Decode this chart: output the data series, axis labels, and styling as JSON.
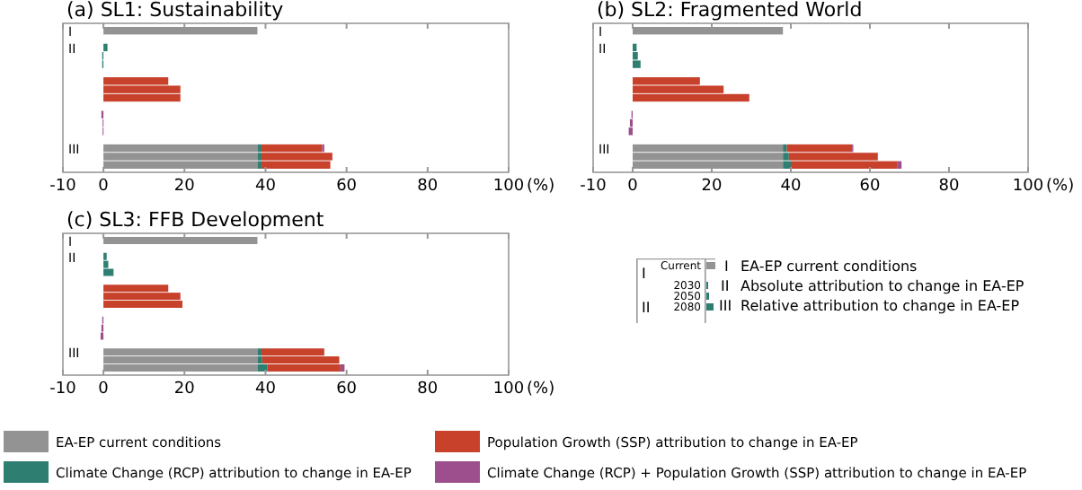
{
  "chart_data": [
    {
      "type": "bar",
      "orientation": "horizontal",
      "stacked": true,
      "title": "(a) SL1: Sustainability",
      "legend": "bottom",
      "xlabel": "(%)",
      "categories": [
        "I",
        null,
        "II",
        null,
        null,
        null,
        null,
        null,
        null,
        null,
        null,
        null,
        null,
        null,
        "III",
        null,
        null
      ],
      "xlim": [
        -10,
        100
      ],
      "xticks": [
        -10,
        0,
        20,
        40,
        60,
        80,
        100
      ],
      "series": [
        {
          "name": "EA-EP current conditions",
          "color": "#939393",
          "values": [
            38,
            null,
            null,
            null,
            null,
            null,
            null,
            null,
            null,
            null,
            null,
            null,
            null,
            null,
            38,
            38,
            38
          ]
        },
        {
          "name": "Climate Change (RCP) attribution to change in EA-EP",
          "color": "#2e7f72",
          "values": [
            null,
            null,
            1,
            -0.3,
            -0.3,
            null,
            null,
            null,
            null,
            null,
            null,
            null,
            null,
            null,
            1,
            1,
            1
          ]
        },
        {
          "name": "Population Growth (SSP) attribution to change in EA-EP",
          "color": "#c8412b",
          "values": [
            null,
            null,
            null,
            null,
            null,
            null,
            16,
            19,
            19,
            null,
            null,
            null,
            null,
            null,
            15,
            17.5,
            17
          ]
        },
        {
          "name": "Climate Change (RCP) + Population Growth (SSP) attribution to change in EA-EP",
          "color": "#9c4f8c",
          "values": [
            null,
            null,
            null,
            null,
            null,
            null,
            null,
            null,
            null,
            null,
            -0.5,
            -0.2,
            -0.2,
            null,
            0.5,
            null,
            null
          ]
        }
      ]
    },
    {
      "type": "bar",
      "orientation": "horizontal",
      "stacked": true,
      "title": "(b) SL2: Fragmented World",
      "xlabel": "(%)",
      "categories": [
        "I",
        null,
        "II",
        null,
        null,
        null,
        null,
        null,
        null,
        null,
        null,
        null,
        null,
        null,
        "III",
        null,
        null
      ],
      "xlim": [
        -10,
        100
      ],
      "xticks": [
        -10,
        0,
        20,
        40,
        60,
        80,
        100
      ],
      "series": [
        {
          "color": "#939393",
          "values": [
            38,
            null,
            null,
            null,
            null,
            null,
            null,
            null,
            null,
            null,
            null,
            null,
            null,
            null,
            38,
            38,
            38
          ]
        },
        {
          "color": "#2e7f72",
          "values": [
            null,
            null,
            1,
            1.3,
            2,
            null,
            null,
            null,
            null,
            null,
            null,
            null,
            null,
            null,
            1,
            1.5,
            2
          ]
        },
        {
          "color": "#c8412b",
          "values": [
            null,
            null,
            null,
            null,
            null,
            null,
            17,
            23,
            29.5,
            null,
            null,
            null,
            null,
            null,
            16.5,
            22.5,
            27
          ]
        },
        {
          "color": "#9c4f8c",
          "values": [
            null,
            null,
            null,
            null,
            null,
            null,
            null,
            null,
            null,
            null,
            -0.3,
            -0.7,
            -1,
            null,
            0.3,
            null,
            1
          ]
        }
      ]
    },
    {
      "type": "bar",
      "orientation": "horizontal",
      "stacked": true,
      "title": "(c) SL3: FFB Development",
      "xlabel": "(%)",
      "categories": [
        "I",
        null,
        "II",
        null,
        null,
        null,
        null,
        null,
        null,
        null,
        null,
        null,
        null,
        null,
        "III",
        null,
        null
      ],
      "xlim": [
        -10,
        100
      ],
      "xticks": [
        -10,
        0,
        20,
        40,
        60,
        80,
        100
      ],
      "series": [
        {
          "color": "#939393",
          "values": [
            38,
            null,
            null,
            null,
            null,
            null,
            null,
            null,
            null,
            null,
            null,
            null,
            null,
            null,
            38,
            38,
            38
          ]
        },
        {
          "color": "#2e7f72",
          "values": [
            null,
            null,
            0.8,
            1.2,
            2.5,
            null,
            null,
            null,
            null,
            null,
            null,
            null,
            null,
            null,
            1,
            1.2,
            2.5
          ]
        },
        {
          "color": "#c8412b",
          "values": [
            null,
            null,
            null,
            null,
            null,
            null,
            16,
            19,
            19.5,
            null,
            null,
            null,
            null,
            null,
            15.5,
            19,
            18
          ]
        },
        {
          "color": "#9c4f8c",
          "values": [
            null,
            null,
            null,
            null,
            null,
            null,
            null,
            null,
            null,
            null,
            -0.3,
            -0.5,
            -0.7,
            null,
            null,
            null,
            1
          ]
        }
      ]
    },
    {
      "type": "other",
      "annotations": [
        "I",
        "II",
        "Current",
        "2030",
        "2050",
        "2080",
        "I",
        "EA-EP current conditions",
        "II",
        "Absolute attribution to change in EA-EP",
        "III",
        "Relative attribution to change in EA-EP"
      ]
    }
  ]
}
